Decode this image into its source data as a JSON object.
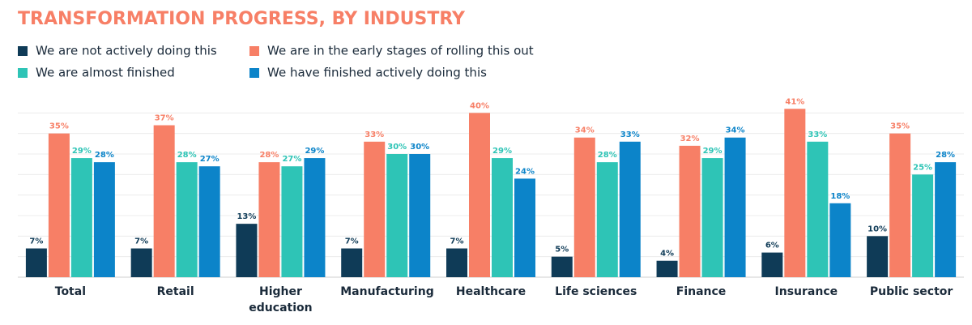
{
  "chart_data": {
    "type": "bar",
    "title": "TRANSFORMATION PROGRESS, BY INDUSTRY",
    "categories": [
      "Total",
      "Retail",
      "Higher education",
      "Manufacturing",
      "Healthcare",
      "Life sciences",
      "Finance",
      "Insurance",
      "Public sector"
    ],
    "series": [
      {
        "name": "We are not actively doing this",
        "color": "#0f3b57",
        "values": [
          7,
          7,
          13,
          7,
          7,
          5,
          4,
          6,
          10
        ],
        "value_labels": [
          "7%",
          "7%",
          "13%",
          "7%",
          "7%",
          "5%",
          "4%",
          "6%",
          "10%"
        ]
      },
      {
        "name": "We are in the early stages of rolling this out",
        "color": "#f77f66",
        "values": [
          35,
          37,
          28,
          33,
          40,
          34,
          32,
          41,
          35
        ],
        "value_labels": [
          "35%",
          "37%",
          "28%",
          "33%",
          "40%",
          "34%",
          "32%",
          "41%",
          "35%"
        ]
      },
      {
        "name": "We are almost finished",
        "color": "#2ec4b6",
        "values": [
          29,
          28,
          27,
          30,
          29,
          28,
          29,
          33,
          25
        ],
        "value_labels": [
          "29%",
          "28%",
          "27%",
          "30%",
          "29%",
          "28%",
          "29%",
          "33%",
          "25%"
        ]
      },
      {
        "name": "We have finished actively doing this",
        "color": "#0c84c9",
        "values": [
          28,
          27,
          29,
          30,
          24,
          33,
          34,
          18,
          28
        ],
        "value_labels": [
          "28%",
          "27%",
          "29%",
          "30%",
          "24%",
          "33%",
          "34%",
          "18%",
          "28%"
        ]
      }
    ],
    "ylim": [
      0,
      45
    ],
    "yticks": [
      5,
      10,
      15,
      20,
      25,
      30,
      35,
      40
    ],
    "grid": true
  }
}
